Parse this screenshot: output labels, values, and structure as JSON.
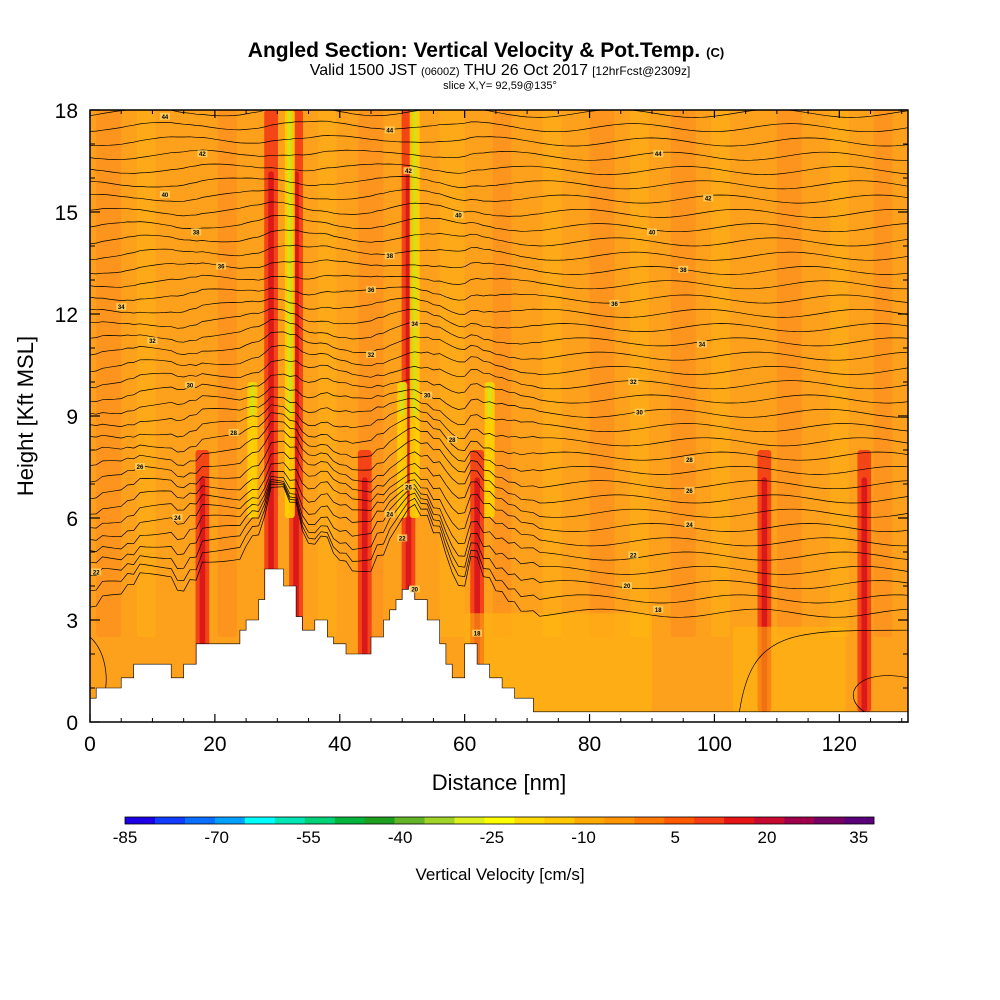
{
  "title": {
    "main": "Angled Section: Vertical Velocity & Pot.Temp.",
    "main_unit": "(C)",
    "valid_prefix": "Valid 1500 JST",
    "valid_utc": "(0600Z)",
    "valid_date": "THU 26 Oct 2017",
    "forecast": "[12hrFcst@2309z]",
    "slice": "slice X,Y= 92,59@135°"
  },
  "chart_data": {
    "type": "heatmap",
    "xlabel": "Distance [nm]",
    "ylabel": "Height [Kft MSL]",
    "xlim": [
      0,
      131
    ],
    "ylim": [
      0,
      18
    ],
    "x_ticks": [
      0,
      20,
      40,
      60,
      80,
      100,
      120
    ],
    "y_ticks": [
      0,
      3,
      6,
      9,
      12,
      15,
      18
    ],
    "colorbar": {
      "title": "Vertical Velocity [cm/s]",
      "tick_labels": [
        "-85",
        "-70",
        "-55",
        "-40",
        "-25",
        "-10",
        "5",
        "20",
        "35"
      ],
      "tick_values": [
        -85,
        -70,
        -55,
        -40,
        -25,
        -10,
        5,
        20,
        35
      ],
      "colors": [
        "#1c00e6",
        "#0f3cff",
        "#0a6eff",
        "#00a0ff",
        "#00ffff",
        "#00e6b4",
        "#00d278",
        "#00b43c",
        "#1ea01e",
        "#64b428",
        "#a0d228",
        "#dcf01e",
        "#ffff00",
        "#ffdc00",
        "#ffc800",
        "#ffaa00",
        "#ff9600",
        "#ff7800",
        "#ff5a00",
        "#f53c14",
        "#e61414",
        "#c80a32",
        "#a0004b",
        "#780064",
        "#5a0078"
      ]
    },
    "background_level": "5 to 10 cm/s",
    "updraft_columns_x": [
      18,
      29,
      33,
      44,
      51,
      62,
      108,
      124
    ],
    "downdraft_columns_x": [
      26,
      32,
      50,
      52,
      64
    ],
    "terrain_height_kft": [
      [
        0,
        0.7
      ],
      [
        1,
        1.0
      ],
      [
        5,
        1.3
      ],
      [
        7,
        1.7
      ],
      [
        13,
        1.3
      ],
      [
        15,
        1.7
      ],
      [
        17,
        2.3
      ],
      [
        23,
        2.3
      ],
      [
        24,
        2.7
      ],
      [
        25,
        3.0
      ],
      [
        27,
        3.6
      ],
      [
        28,
        4.5
      ],
      [
        31,
        4.0
      ],
      [
        33,
        3.1
      ],
      [
        34,
        2.7
      ],
      [
        36,
        3.0
      ],
      [
        38,
        2.5
      ],
      [
        39,
        2.3
      ],
      [
        41,
        2.0
      ],
      [
        43,
        2.0
      ],
      [
        45,
        2.5
      ],
      [
        47,
        3.0
      ],
      [
        48,
        3.3
      ],
      [
        49,
        3.6
      ],
      [
        50,
        3.9
      ],
      [
        51,
        4.0
      ],
      [
        52,
        3.6
      ],
      [
        54,
        3.0
      ],
      [
        56,
        2.3
      ],
      [
        57,
        1.7
      ],
      [
        58,
        1.3
      ],
      [
        60,
        2.3
      ],
      [
        62,
        1.7
      ],
      [
        64,
        1.3
      ],
      [
        66,
        1.0
      ],
      [
        68,
        0.7
      ],
      [
        71,
        0.3
      ],
      [
        131,
        0.3
      ]
    ],
    "isentrope_labels": [
      {
        "label": "44",
        "x": 12,
        "y": 17.8
      },
      {
        "label": "42",
        "x": 18,
        "y": 16.7
      },
      {
        "label": "40",
        "x": 12,
        "y": 15.5
      },
      {
        "label": "38",
        "x": 17,
        "y": 14.4
      },
      {
        "label": "36",
        "x": 21,
        "y": 13.4
      },
      {
        "label": "34",
        "x": 5,
        "y": 12.2
      },
      {
        "label": "32",
        "x": 10,
        "y": 11.2
      },
      {
        "label": "30",
        "x": 16,
        "y": 9.9
      },
      {
        "label": "28",
        "x": 23,
        "y": 8.5
      },
      {
        "label": "26",
        "x": 8,
        "y": 7.5
      },
      {
        "label": "24",
        "x": 14,
        "y": 6.0
      },
      {
        "label": "22",
        "x": 1,
        "y": 4.4
      },
      {
        "label": "44",
        "x": 48,
        "y": 17.4
      },
      {
        "label": "42",
        "x": 51,
        "y": 16.2
      },
      {
        "label": "40",
        "x": 59,
        "y": 14.9
      },
      {
        "label": "38",
        "x": 48,
        "y": 13.7
      },
      {
        "label": "36",
        "x": 45,
        "y": 12.7
      },
      {
        "label": "34",
        "x": 52,
        "y": 11.7
      },
      {
        "label": "32",
        "x": 45,
        "y": 10.8
      },
      {
        "label": "30",
        "x": 54,
        "y": 9.6
      },
      {
        "label": "28",
        "x": 58,
        "y": 8.3
      },
      {
        "label": "26",
        "x": 51,
        "y": 6.9
      },
      {
        "label": "24",
        "x": 48,
        "y": 6.1
      },
      {
        "label": "22",
        "x": 50,
        "y": 5.4
      },
      {
        "label": "20",
        "x": 52,
        "y": 3.9
      },
      {
        "label": "18",
        "x": 62,
        "y": 2.6
      },
      {
        "label": "44",
        "x": 91,
        "y": 16.7
      },
      {
        "label": "42",
        "x": 99,
        "y": 15.4
      },
      {
        "label": "40",
        "x": 90,
        "y": 14.4
      },
      {
        "label": "38",
        "x": 95,
        "y": 13.3
      },
      {
        "label": "36",
        "x": 84,
        "y": 12.3
      },
      {
        "label": "34",
        "x": 98,
        "y": 11.1
      },
      {
        "label": "32",
        "x": 87,
        "y": 10.0
      },
      {
        "label": "30",
        "x": 88,
        "y": 9.1
      },
      {
        "label": "28",
        "x": 96,
        "y": 7.7
      },
      {
        "label": "26",
        "x": 96,
        "y": 6.8
      },
      {
        "label": "24",
        "x": 96,
        "y": 5.8
      },
      {
        "label": "22",
        "x": 87,
        "y": 4.9
      },
      {
        "label": "20",
        "x": 86,
        "y": 4.0
      },
      {
        "label": "18",
        "x": 91,
        "y": 3.3
      }
    ]
  }
}
